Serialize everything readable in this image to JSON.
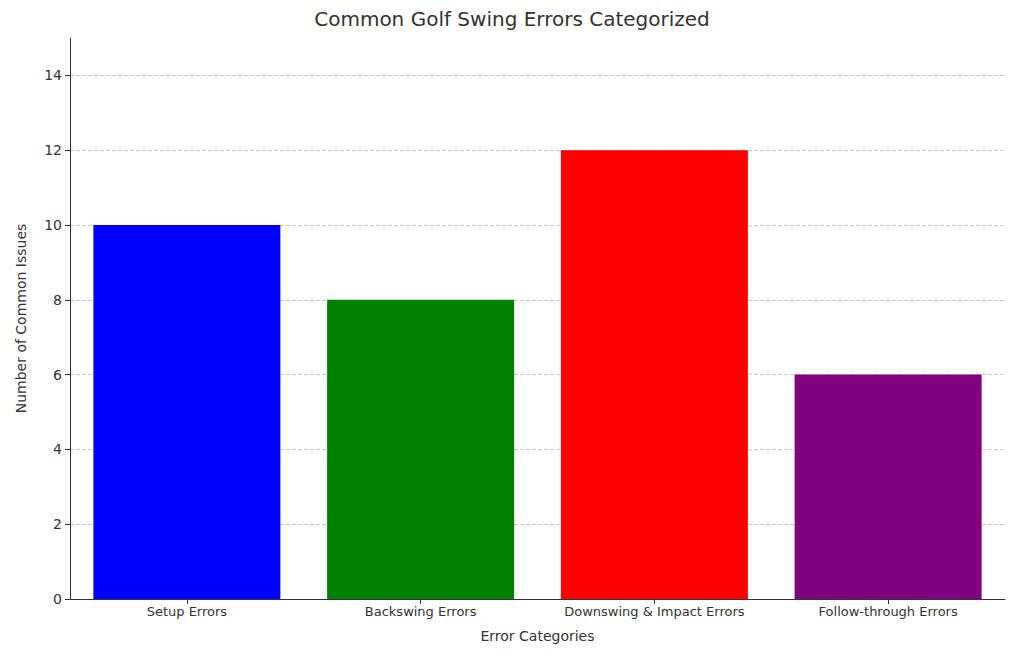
{
  "chart_data": {
    "type": "bar",
    "title": "Common Golf Swing Errors Categorized",
    "x_label": "Error Categories",
    "y_label": "Number of Common Issues",
    "categories": [
      "Setup Errors",
      "Backswing Errors",
      "Downswing & Impact Errors",
      "Follow-through Errors"
    ],
    "values": [
      10,
      8,
      12,
      6
    ],
    "colors": [
      "#0000ff",
      "#008000",
      "#ff0000",
      "#800080"
    ],
    "ylim": [
      0,
      15
    ],
    "yticks": [
      0,
      2,
      4,
      6,
      8,
      10,
      12,
      14
    ],
    "grid": true
  }
}
